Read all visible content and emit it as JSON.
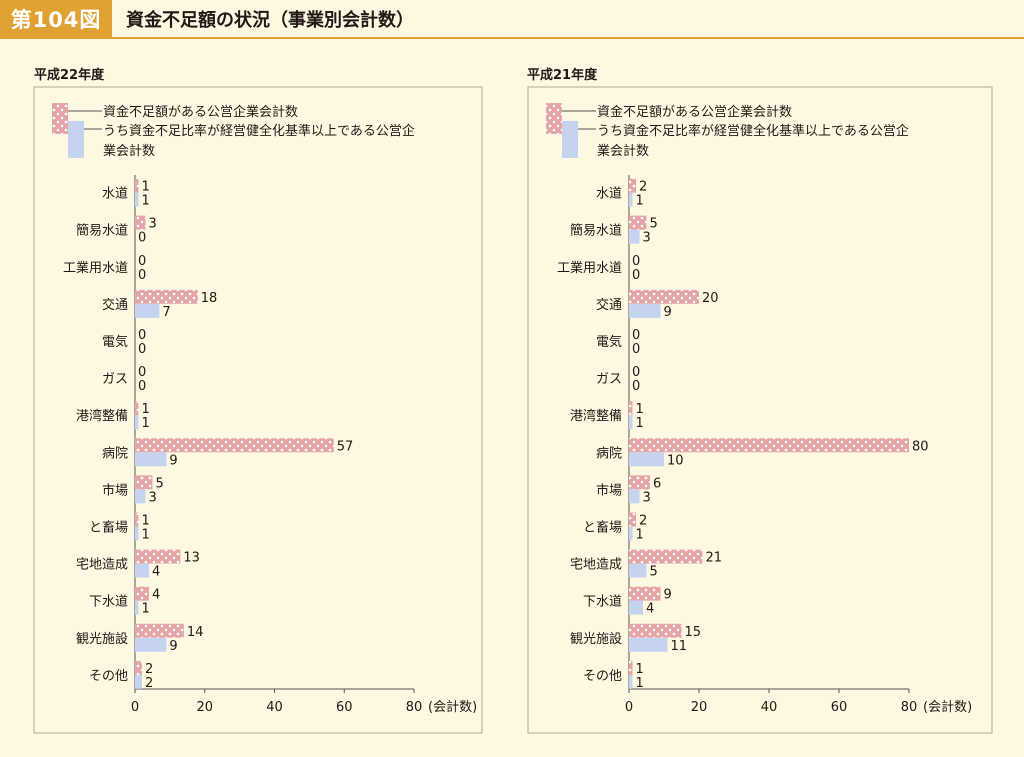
{
  "header": {
    "figure_label": "第104図",
    "title": "資金不足額の状況（事業別会計数）"
  },
  "colors": {
    "accent": "#e0a132",
    "series1_fill": "#e5a5a6",
    "series1_dot": "#ffffff",
    "series2_fill": "#c5d3ef",
    "panel_border": "#b4a890",
    "background": "#fdf8e1"
  },
  "legend": {
    "series1": "資金不足額がある公営企業会計数",
    "series2_line1": "うち資金不足比率が経営健全化基準以上である公営企",
    "series2_line2": "業会計数"
  },
  "unit_label": "(会計数)",
  "chart_data": [
    {
      "type": "bar",
      "orientation": "horizontal",
      "title": "平成22年度",
      "categories": [
        "水道",
        "簡易水道",
        "工業用水道",
        "交通",
        "電気",
        "ガス",
        "港湾整備",
        "病院",
        "市場",
        "と畜場",
        "宅地造成",
        "下水道",
        "観光施設",
        "その他"
      ],
      "series": [
        {
          "name": "資金不足額がある公営企業会計数",
          "values": [
            1,
            3,
            0,
            18,
            0,
            0,
            1,
            57,
            5,
            1,
            13,
            4,
            14,
            2
          ]
        },
        {
          "name": "うち資金不足比率が経営健全化基準以上である公営企業会計数",
          "values": [
            1,
            0,
            0,
            7,
            0,
            0,
            1,
            9,
            3,
            1,
            4,
            1,
            9,
            2
          ]
        }
      ],
      "xlim": [
        0,
        80
      ],
      "xticks": [
        0,
        20,
        40,
        60,
        80
      ],
      "xlabel": "(会計数)",
      "legend_position": "top"
    },
    {
      "type": "bar",
      "orientation": "horizontal",
      "title": "平成21年度",
      "categories": [
        "水道",
        "簡易水道",
        "工業用水道",
        "交通",
        "電気",
        "ガス",
        "港湾整備",
        "病院",
        "市場",
        "と畜場",
        "宅地造成",
        "下水道",
        "観光施設",
        "その他"
      ],
      "series": [
        {
          "name": "資金不足額がある公営企業会計数",
          "values": [
            2,
            5,
            0,
            20,
            0,
            0,
            1,
            80,
            6,
            2,
            21,
            9,
            15,
            1
          ]
        },
        {
          "name": "うち資金不足比率が経営健全化基準以上である公営企業会計数",
          "values": [
            1,
            3,
            0,
            9,
            0,
            0,
            1,
            10,
            3,
            1,
            5,
            4,
            11,
            1
          ]
        }
      ],
      "xlim": [
        0,
        80
      ],
      "xticks": [
        0,
        20,
        40,
        60,
        80
      ],
      "xlabel": "(会計数)",
      "legend_position": "top"
    }
  ]
}
